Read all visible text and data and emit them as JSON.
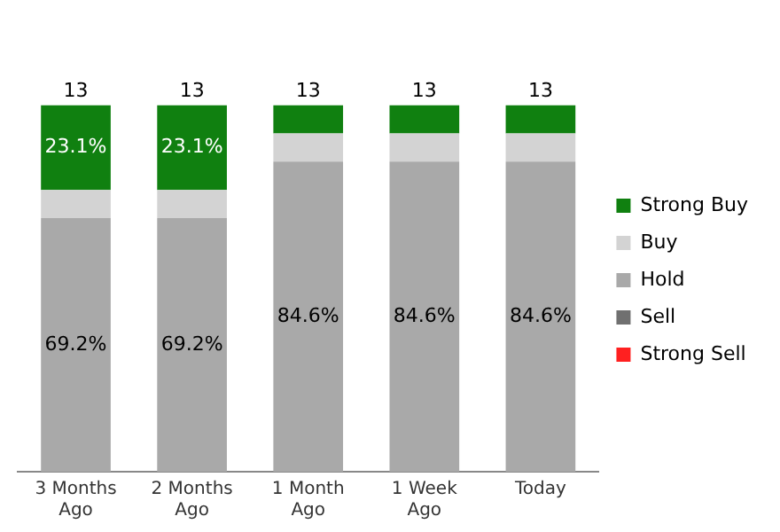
{
  "chart_data": {
    "type": "bar",
    "stacked": true,
    "categories": [
      "3 Months\nAgo",
      "2 Months\nAgo",
      "1 Month\nAgo",
      "1 Week\nAgo",
      "Today"
    ],
    "series": [
      {
        "name": "Strong Sell",
        "color": "#ff2020",
        "values": [
          0,
          0,
          0,
          0,
          0
        ]
      },
      {
        "name": "Sell",
        "color": "#707070",
        "values": [
          0,
          0,
          0,
          0,
          0
        ]
      },
      {
        "name": "Hold",
        "color": "#a9a9a9",
        "values": [
          69.2,
          69.2,
          84.6,
          84.6,
          84.6
        ],
        "value_labels": [
          "69.2%",
          "69.2%",
          "84.6%",
          "84.6%",
          "84.6%"
        ]
      },
      {
        "name": "Buy",
        "color": "#d3d3d3",
        "values": [
          7.7,
          7.7,
          7.7,
          7.7,
          7.7
        ]
      },
      {
        "name": "Strong Buy",
        "color": "#108010",
        "values": [
          23.1,
          23.1,
          7.7,
          7.7,
          7.7
        ],
        "value_labels": [
          "23.1%",
          "23.1%",
          null,
          null,
          null
        ]
      }
    ],
    "annotations": [
      {
        "text": "13",
        "x": "3 Months\nAgo",
        "y": 100
      },
      {
        "text": "13",
        "x": "2 Months\nAgo",
        "y": 100
      },
      {
        "text": "13",
        "x": "1 Month\nAgo",
        "y": 100
      },
      {
        "text": "13",
        "x": "1 Week\nAgo",
        "y": 100
      },
      {
        "text": "13",
        "x": "Today",
        "y": 100
      }
    ],
    "tick_labels": "x",
    "grid": false,
    "legend": "right"
  }
}
